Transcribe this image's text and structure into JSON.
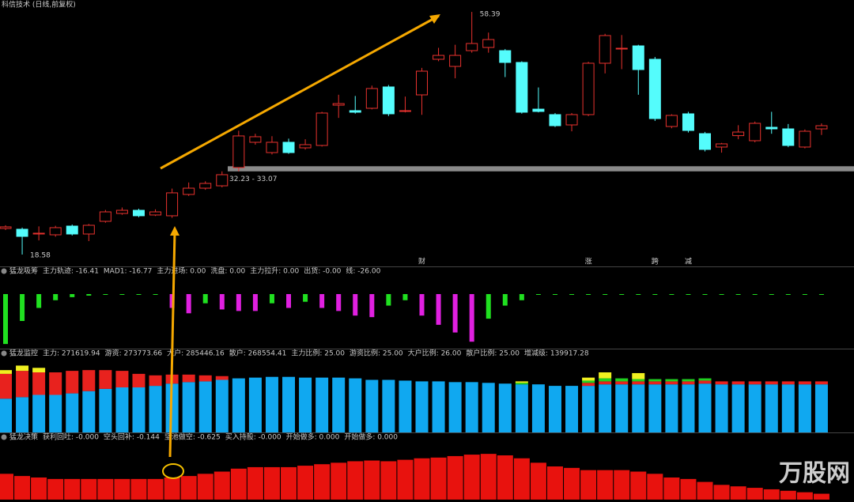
{
  "chart_data": [
    {
      "type": "candlestick",
      "title": "科信技术 (日线,前复权)",
      "up_color": "#e8322e",
      "down_color": "#54fcfc",
      "ylim": [
        16.89,
        58.79
      ],
      "high_label": "58.39",
      "low_label": "18.58",
      "gap": {
        "low": 32.23,
        "high": 33.07,
        "label": "32.23 - 33.07"
      },
      "events": [
        "财",
        "涨",
        "跨",
        "减"
      ],
      "watermark": "万股网",
      "open": [
        22.86,
        22.73,
        22.08,
        21.82,
        23.25,
        21.95,
        24.03,
        25.32,
        25.84,
        25.07,
        24.94,
        28.44,
        29.47,
        29.86,
        32.85,
        37.0,
        35.31,
        37.0,
        36.09,
        36.48,
        43.09,
        42.19,
        42.58,
        46.08,
        42.06,
        44.78,
        50.62,
        49.45,
        52.04,
        52.56,
        52.04,
        50.1,
        42.44,
        41.54,
        39.85,
        41.54,
        49.97,
        52.43,
        52.82,
        50.62,
        39.59,
        41.67,
        38.42,
        36.22,
        38.09,
        37.26,
        39.46,
        39.2,
        36.22,
        39.2
      ],
      "high": [
        23.4,
        23.0,
        23.2,
        23.3,
        23.5,
        23.6,
        25.9,
        26.3,
        26.1,
        26.0,
        29.4,
        30.4,
        30.6,
        32.23,
        38.9,
        38.4,
        38.0,
        37.6,
        37.5,
        42.0,
        44.8,
        44.6,
        46.3,
        46.4,
        44.5,
        49.2,
        52.5,
        53.0,
        58.39,
        55.0,
        52.3,
        50.3,
        46.0,
        41.8,
        41.8,
        50.2,
        54.8,
        54.6,
        53.0,
        51.0,
        41.6,
        42.0,
        38.7,
        36.9,
        39.8,
        40.4,
        42.0,
        40.0,
        39.1,
        40.1
      ],
      "low": [
        22.6,
        18.58,
        20.9,
        21.5,
        21.7,
        20.78,
        23.8,
        25.1,
        24.7,
        24.9,
        24.6,
        28.2,
        29.2,
        29.6,
        32.23,
        36.6,
        35.0,
        35.1,
        35.8,
        36.3,
        41.0,
        41.7,
        42.4,
        41.3,
        41.9,
        41.5,
        50.3,
        47.5,
        51.7,
        51.7,
        47.7,
        41.7,
        41.9,
        39.5,
        38.8,
        41.3,
        48.3,
        49.0,
        44.8,
        40.5,
        39.3,
        38.6,
        35.5,
        35.3,
        37.5,
        37.0,
        38.4,
        36.2,
        36.0,
        38.2
      ],
      "close": [
        23.12,
        21.56,
        22.08,
        22.99,
        21.95,
        23.38,
        25.58,
        25.84,
        24.94,
        25.58,
        28.7,
        29.47,
        30.25,
        31.68,
        38.04,
        37.91,
        37.0,
        35.31,
        36.61,
        41.8,
        43.35,
        41.93,
        45.82,
        41.67,
        42.19,
        48.67,
        51.26,
        51.26,
        53.21,
        53.86,
        50.1,
        41.93,
        42.06,
        39.72,
        41.54,
        49.97,
        54.51,
        52.43,
        48.93,
        40.89,
        41.41,
        38.94,
        35.83,
        36.74,
        38.68,
        40.11,
        39.2,
        36.48,
        38.81,
        39.72
      ]
    },
    {
      "type": "bar",
      "title": "猛龙吸筹",
      "items": [
        {
          "label": "主力轨迹: -16.41",
          "color": "#e8322e"
        },
        {
          "label": "MAD1: -16.77",
          "color": "#3a3af0"
        },
        {
          "label": "主力进场: 0.00",
          "color": "#e8322e"
        },
        {
          "label": "洗盘: 0.00",
          "color": "#3a3af0"
        },
        {
          "label": "主力拉升: 0.00",
          "color": "#e040e0"
        },
        {
          "label": "出货: -0.00",
          "color": "#20e020"
        },
        {
          "label": "线: -26.00",
          "color": "#3a3af0"
        }
      ],
      "ylim": [
        -70,
        0
      ],
      "values": [
        -65,
        -35,
        -18,
        -8,
        -4,
        -2,
        -1,
        -1,
        -1,
        -1,
        -18,
        -25,
        -12,
        -20,
        -22,
        -22,
        -12,
        -18,
        -10,
        -18,
        -22,
        -28,
        -30,
        -15,
        -8,
        -28,
        -40,
        -50,
        -62,
        -32,
        -15,
        -8,
        -1,
        -1,
        -1,
        -1,
        -1,
        -1,
        -1,
        -1,
        -1,
        -1,
        -1,
        -1,
        -1,
        -1,
        -1,
        -1,
        -1,
        -1
      ],
      "colors": [
        "#20e020",
        "#20e020",
        "#20e020",
        "#20e020",
        "#20e020",
        "#20e020",
        "#20e020",
        "#20e020",
        "#20e020",
        "#20e020",
        "#e020e0",
        "#e020e0",
        "#20e020",
        "#e020e0",
        "#e020e0",
        "#e020e0",
        "#20e020",
        "#e020e0",
        "#20e020",
        "#e020e0",
        "#e020e0",
        "#e020e0",
        "#e020e0",
        "#20e020",
        "#20e020",
        "#e020e0",
        "#e020e0",
        "#e020e0",
        "#e020e0",
        "#20e020",
        "#20e020",
        "#20e020",
        "#20e020",
        "#20e020",
        "#20e020",
        "#20e020",
        "#20e020",
        "#20e020",
        "#20e020",
        "#20e020",
        "#20e020",
        "#20e020",
        "#20e020",
        "#20e020",
        "#20e020",
        "#20e020",
        "#20e020",
        "#20e020",
        "#20e020",
        "#20e020"
      ]
    },
    {
      "type": "stacked_bar",
      "title": "猛龙监控",
      "items": [
        {
          "label": "主力: 271619.94",
          "color": "#dddddd"
        },
        {
          "label": "游资: 273773.66",
          "color": "#f0f020"
        },
        {
          "label": "大户: 285446.16",
          "color": "#e8322e"
        },
        {
          "label": "散户: 268554.41",
          "color": "#20e020"
        },
        {
          "label": "主力比例: 25.00",
          "color": "#dddddd"
        },
        {
          "label": "游资比例: 25.00",
          "color": "#3a3af0"
        },
        {
          "label": "大户比例: 26.00",
          "color": "#dddddd"
        },
        {
          "label": "散户比例: 25.00",
          "color": "#f0f020"
        },
        {
          "label": "增减级: 139917.28",
          "color": "#e040e0"
        }
      ],
      "ylim": [
        0,
        100
      ],
      "series": [
        {
          "color": "#10a8f0",
          "values": [
            45,
            47,
            50,
            50,
            52,
            55,
            58,
            60,
            60,
            62,
            65,
            67,
            68,
            70,
            72,
            73,
            74,
            74,
            73,
            73,
            73,
            72,
            70,
            70,
            69,
            68,
            68,
            67,
            67,
            66,
            65,
            64,
            64,
            62,
            62,
            62,
            64,
            64,
            64,
            64,
            64,
            64,
            65,
            64,
            64,
            64,
            64,
            64,
            64,
            64
          ]
        },
        {
          "color": "#e8221e",
          "values": [
            33,
            35,
            30,
            30,
            30,
            28,
            25,
            22,
            18,
            14,
            12,
            10,
            8,
            5,
            0,
            0,
            0,
            0,
            0,
            0,
            0,
            0,
            0,
            0,
            0,
            0,
            0,
            0,
            0,
            0,
            0,
            0,
            0,
            0,
            0,
            4,
            4,
            4,
            4,
            4,
            4,
            4,
            4,
            4,
            4,
            4,
            4,
            4,
            4,
            4
          ]
        },
        {
          "color": "#20d020",
          "values": [
            0,
            0,
            0,
            0,
            0,
            0,
            0,
            0,
            0,
            0,
            0,
            0,
            0,
            0,
            0,
            0,
            0,
            0,
            0,
            0,
            0,
            0,
            0,
            0,
            0,
            0,
            0,
            0,
            0,
            0,
            0,
            2,
            0,
            0,
            0,
            3,
            4,
            4,
            3,
            3,
            3,
            3,
            3,
            0,
            0,
            0,
            0,
            0,
            0,
            0
          ]
        },
        {
          "color": "#f0f020",
          "values": [
            5,
            7,
            6,
            0,
            0,
            0,
            0,
            0,
            0,
            0,
            0,
            0,
            0,
            0,
            0,
            0,
            0,
            0,
            0,
            0,
            0,
            0,
            0,
            0,
            0,
            0,
            0,
            0,
            0,
            0,
            0,
            2,
            0,
            0,
            0,
            4,
            8,
            0,
            8,
            0,
            0,
            0,
            0,
            0,
            0,
            0,
            0,
            0,
            0,
            0
          ]
        }
      ]
    },
    {
      "type": "bar",
      "title": "猛龙决策",
      "items": [
        {
          "label": "获利回吐: -0.000",
          "color": "#20e0e0"
        },
        {
          "label": "空头回补: -0.144",
          "color": "#e040e0"
        },
        {
          "label": "坚池做空: -0.625",
          "color": "#20e020"
        },
        {
          "label": "买入持股: -0.000",
          "color": "#e8322e"
        },
        {
          "label": "开始做多: 0.000",
          "color": "#3a3af0"
        },
        {
          "label": "开始做多: 0.000",
          "color": "#e8322e"
        }
      ],
      "ylim": [
        0,
        75
      ],
      "values": [
        35,
        32,
        30,
        28,
        28,
        28,
        28,
        28,
        28,
        28,
        30,
        32,
        35,
        38,
        42,
        44,
        44,
        44,
        46,
        48,
        50,
        52,
        53,
        52,
        54,
        56,
        57,
        59,
        61,
        62,
        60,
        56,
        50,
        45,
        43,
        40,
        40,
        40,
        38,
        35,
        30,
        28,
        24,
        20,
        18,
        16,
        14,
        12,
        10,
        8
      ],
      "color": "#e8120e"
    }
  ]
}
